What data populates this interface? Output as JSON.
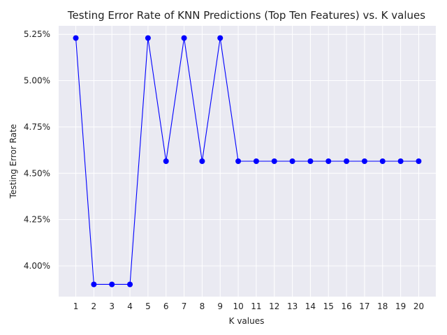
{
  "chart_data": {
    "type": "line",
    "title": "Testing Error Rate of KNN Predictions (Top Ten Features) vs. K values",
    "xlabel": "K values",
    "ylabel": "Testing Error Rate",
    "x": [
      1,
      2,
      3,
      4,
      5,
      6,
      7,
      8,
      9,
      10,
      11,
      12,
      13,
      14,
      15,
      16,
      17,
      18,
      19,
      20
    ],
    "series": [
      {
        "values": [
          5.23,
          3.9,
          3.9,
          3.9,
          5.23,
          4.565,
          5.23,
          4.565,
          5.23,
          4.565,
          4.565,
          4.565,
          4.565,
          4.565,
          4.565,
          4.565,
          4.565,
          4.565,
          4.565,
          4.565
        ],
        "color": "#0000ff",
        "marker": "circle"
      }
    ],
    "xticks": [
      "1",
      "2",
      "3",
      "4",
      "5",
      "6",
      "7",
      "8",
      "9",
      "10",
      "11",
      "12",
      "13",
      "14",
      "15",
      "16",
      "17",
      "18",
      "19",
      "20"
    ],
    "yticks": [
      4.0,
      4.25,
      4.5,
      4.75,
      5.0,
      5.25
    ],
    "ytick_labels": [
      "4.00%",
      "4.25%",
      "4.50%",
      "4.75%",
      "5.00%",
      "5.25%"
    ],
    "xlim": [
      0.05,
      20.95
    ],
    "ylim": [
      3.834,
      5.296
    ],
    "grid": true,
    "background": "#eaeaf2"
  }
}
